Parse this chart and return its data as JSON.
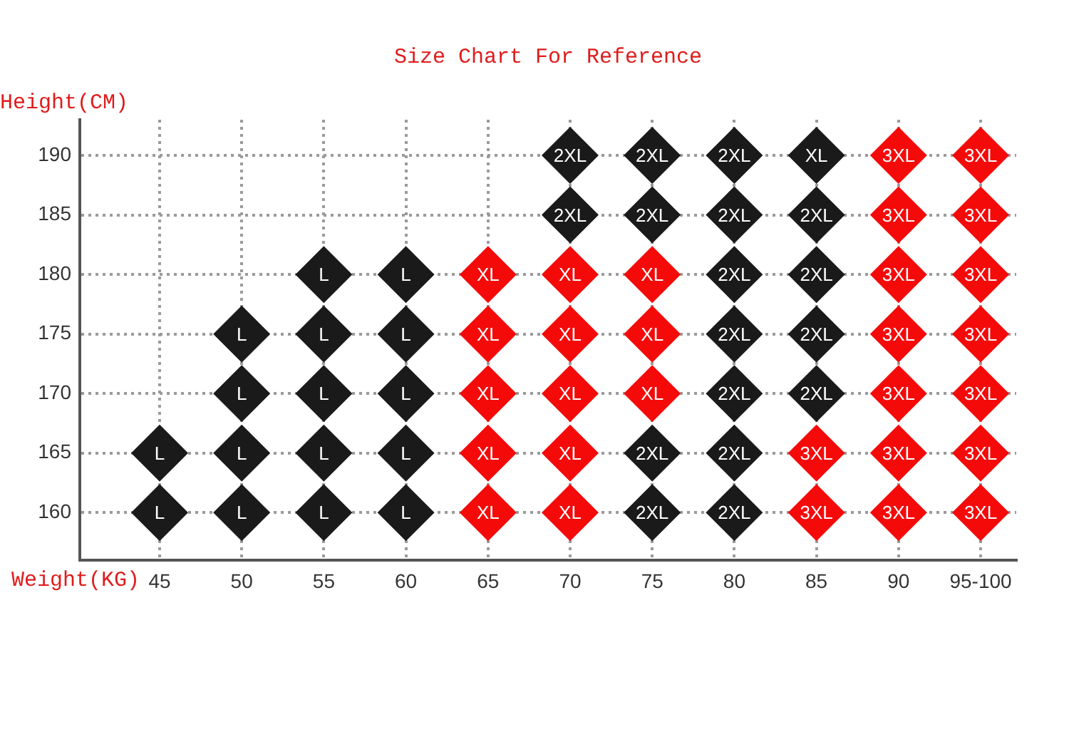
{
  "chart_data": {
    "type": "scatter",
    "title": "Size Chart For Reference",
    "xlabel": "Weight(KG)",
    "ylabel": "Height(CM)",
    "categories": [
      "45",
      "50",
      "55",
      "60",
      "65",
      "70",
      "75",
      "80",
      "85",
      "90",
      "95-100"
    ],
    "ylim": [
      156,
      193
    ],
    "yticks": [
      160,
      165,
      170,
      175,
      180,
      185,
      190
    ],
    "grid": true,
    "marker": "diamond",
    "series": [
      {
        "name": "L",
        "color": "#1a1a1a",
        "x": [
          "45",
          "45",
          "50",
          "50",
          "50",
          "50",
          "55",
          "55",
          "55",
          "55",
          "55",
          "60",
          "60",
          "60",
          "60",
          "60"
        ],
        "values": [
          160,
          165,
          160,
          165,
          170,
          175,
          160,
          165,
          170,
          175,
          180,
          160,
          165,
          170,
          175,
          180
        ]
      },
      {
        "name": "XL",
        "x": [
          "65",
          "65",
          "65",
          "65",
          "65",
          "70",
          "70",
          "70",
          "70",
          "70",
          "75",
          "75",
          "75",
          "85"
        ],
        "values": [
          160,
          165,
          170,
          175,
          180,
          160,
          165,
          170,
          175,
          180,
          170,
          175,
          180,
          190
        ],
        "colors": [
          "#f50a0a",
          "#f50a0a",
          "#f50a0a",
          "#f50a0a",
          "#f50a0a",
          "#f50a0a",
          "#f50a0a",
          "#f50a0a",
          "#f50a0a",
          "#f50a0a",
          "#f50a0a",
          "#f50a0a",
          "#f50a0a",
          "#1a1a1a"
        ]
      },
      {
        "name": "2XL",
        "color": "#1a1a1a",
        "x": [
          "70",
          "70",
          "75",
          "75",
          "75",
          "75",
          "80",
          "80",
          "80",
          "80",
          "80",
          "80",
          "80",
          "85",
          "85",
          "85",
          "85"
        ],
        "values": [
          185,
          190,
          160,
          165,
          185,
          190,
          160,
          165,
          170,
          175,
          180,
          185,
          190,
          170,
          175,
          180,
          185
        ]
      },
      {
        "name": "3XL",
        "color": "#f50a0a",
        "x": [
          "85",
          "85",
          "90",
          "90",
          "90",
          "90",
          "90",
          "90",
          "90",
          "95-100",
          "95-100",
          "95-100",
          "95-100",
          "95-100",
          "95-100",
          "95-100"
        ],
        "values": [
          160,
          165,
          160,
          165,
          170,
          175,
          180,
          185,
          190,
          160,
          165,
          170,
          175,
          180,
          185,
          190
        ]
      }
    ]
  }
}
